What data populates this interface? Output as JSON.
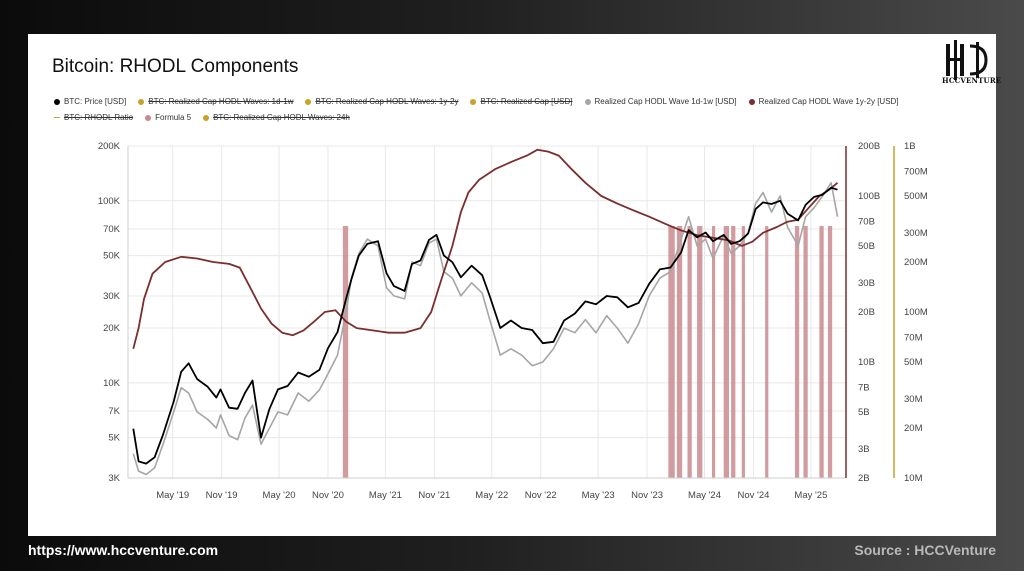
{
  "footer": {
    "url": "https://www.hccventure.com",
    "source": "Source : HCCVenture"
  },
  "logo": {
    "text": "HCCVENTURE",
    "icon": "hcc-monogram-icon"
  },
  "colors": {
    "price": "#000000",
    "wave1d1w": "#a6a6a6",
    "wave1y2y": "#7a2e2e",
    "signal": "#c98a8f",
    "axis_right_2": "#c9a227",
    "grid": "#e8e8e8"
  },
  "chart_data": {
    "type": "line",
    "title": "Bitcoin: RHODL Components",
    "legend": [
      {
        "label": "BTC: Price [USD]",
        "color": "#000000",
        "active": true,
        "marker": "dot"
      },
      {
        "label": "BTC: Realized Cap HODL Waves: 1d-1w",
        "color": "#c9a227",
        "active": false,
        "marker": "dot"
      },
      {
        "label": "BTC: Realized Cap HODL Waves: 1y-2y",
        "color": "#c9a227",
        "active": false,
        "marker": "dot"
      },
      {
        "label": "BTC: Realized Cap [USD]",
        "color": "#c9a227",
        "active": false,
        "marker": "dot"
      },
      {
        "label": "Realized Cap HODL Wave 1d-1w [USD]",
        "color": "#a6a6a6",
        "active": true,
        "marker": "dot"
      },
      {
        "label": "Realized Cap HODL Wave 1y-2y [USD]",
        "color": "#7a2e2e",
        "active": true,
        "marker": "dot"
      },
      {
        "label": "BTC: RHODL Ratio",
        "color": "#c9a227",
        "active": false,
        "marker": "dash"
      },
      {
        "label": "Formula 5",
        "color": "#c98a8f",
        "active": true,
        "marker": "dot"
      },
      {
        "label": "BTC: Realized Cap HODL Waves: 24h",
        "color": "#c9a227",
        "active": false,
        "marker": "dot"
      }
    ],
    "x_ticks": [
      "May '19",
      "Nov '19",
      "May '20",
      "Nov '20",
      "May '21",
      "Nov '21",
      "May '22",
      "Nov '22",
      "May '23",
      "Nov '23",
      "May '24",
      "Nov '24",
      "May '25"
    ],
    "x_range": [
      2018.95,
      2025.7
    ],
    "y_left": {
      "scale": "log",
      "ticks": [
        "3K",
        "5K",
        "7K",
        "10K",
        "20K",
        "30K",
        "50K",
        "70K",
        "100K",
        "200K"
      ],
      "tick_values": [
        3000,
        5000,
        7000,
        10000,
        20000,
        30000,
        50000,
        70000,
        100000,
        200000
      ],
      "range": [
        3000,
        200000
      ]
    },
    "y_right_1": {
      "scale": "log",
      "ticks": [
        "2B",
        "3B",
        "5B",
        "7B",
        "10B",
        "20B",
        "30B",
        "50B",
        "70B",
        "100B",
        "200B"
      ],
      "tick_values": [
        2000000000.0,
        3000000000.0,
        5000000000.0,
        7000000000.0,
        10000000000.0,
        20000000000.0,
        30000000000.0,
        50000000000.0,
        70000000000.0,
        100000000000.0,
        200000000000.0
      ],
      "range": [
        2000000000.0,
        200000000000.0
      ]
    },
    "y_right_2": {
      "scale": "log",
      "ticks": [
        "10M",
        "20M",
        "30M",
        "50M",
        "70M",
        "100M",
        "200M",
        "300M",
        "500M",
        "700M",
        "1B"
      ],
      "tick_values": [
        10000000.0,
        20000000.0,
        30000000.0,
        50000000.0,
        70000000.0,
        100000000.0,
        200000000.0,
        300000000.0,
        500000000.0,
        700000000.0,
        1000000000.0
      ],
      "range": [
        10000000.0,
        1000000000.0
      ]
    },
    "series": [
      {
        "name": "BTC: Price [USD]",
        "axis": "left",
        "points": [
          [
            2019.0,
            5600
          ],
          [
            2019.05,
            3700
          ],
          [
            2019.12,
            3600
          ],
          [
            2019.2,
            3900
          ],
          [
            2019.28,
            5200
          ],
          [
            2019.38,
            7900
          ],
          [
            2019.45,
            11500
          ],
          [
            2019.52,
            12800
          ],
          [
            2019.6,
            10500
          ],
          [
            2019.7,
            9500
          ],
          [
            2019.78,
            8300
          ],
          [
            2019.82,
            9200
          ],
          [
            2019.9,
            7300
          ],
          [
            2019.98,
            7200
          ],
          [
            2020.05,
            8800
          ],
          [
            2020.12,
            10300
          ],
          [
            2020.2,
            5000
          ],
          [
            2020.28,
            7200
          ],
          [
            2020.36,
            9200
          ],
          [
            2020.45,
            9600
          ],
          [
            2020.55,
            11400
          ],
          [
            2020.65,
            10800
          ],
          [
            2020.75,
            11800
          ],
          [
            2020.83,
            15500
          ],
          [
            2020.92,
            19000
          ],
          [
            2021.0,
            29000
          ],
          [
            2021.05,
            37000
          ],
          [
            2021.12,
            50000
          ],
          [
            2021.2,
            58000
          ],
          [
            2021.3,
            60000
          ],
          [
            2021.38,
            40000
          ],
          [
            2021.45,
            34000
          ],
          [
            2021.55,
            32000
          ],
          [
            2021.62,
            45000
          ],
          [
            2021.7,
            47000
          ],
          [
            2021.78,
            61000
          ],
          [
            2021.85,
            65000
          ],
          [
            2021.92,
            50000
          ],
          [
            2022.0,
            46000
          ],
          [
            2022.08,
            38000
          ],
          [
            2022.18,
            44000
          ],
          [
            2022.28,
            39000
          ],
          [
            2022.35,
            30000
          ],
          [
            2022.45,
            20000
          ],
          [
            2022.55,
            22000
          ],
          [
            2022.65,
            20000
          ],
          [
            2022.75,
            19500
          ],
          [
            2022.85,
            16500
          ],
          [
            2022.95,
            16800
          ],
          [
            2023.05,
            22000
          ],
          [
            2023.15,
            24000
          ],
          [
            2023.25,
            28000
          ],
          [
            2023.35,
            27000
          ],
          [
            2023.45,
            30000
          ],
          [
            2023.55,
            29500
          ],
          [
            2023.65,
            26000
          ],
          [
            2023.75,
            27500
          ],
          [
            2023.85,
            35000
          ],
          [
            2023.95,
            42000
          ],
          [
            2024.05,
            43000
          ],
          [
            2024.15,
            52000
          ],
          [
            2024.22,
            69000
          ],
          [
            2024.3,
            63000
          ],
          [
            2024.38,
            67000
          ],
          [
            2024.45,
            60000
          ],
          [
            2024.55,
            65000
          ],
          [
            2024.62,
            58000
          ],
          [
            2024.7,
            60000
          ],
          [
            2024.78,
            66000
          ],
          [
            2024.85,
            90000
          ],
          [
            2024.92,
            98000
          ],
          [
            2025.0,
            96000
          ],
          [
            2025.08,
            100000
          ],
          [
            2025.15,
            85000
          ],
          [
            2025.25,
            78000
          ],
          [
            2025.32,
            95000
          ],
          [
            2025.4,
            105000
          ],
          [
            2025.48,
            108000
          ],
          [
            2025.56,
            118000
          ],
          [
            2025.62,
            115000
          ]
        ]
      },
      {
        "name": "Realized Cap HODL Wave 1d-1w [USD]",
        "axis": "right_1",
        "points": [
          [
            2019.0,
            2800000000.0
          ],
          [
            2019.05,
            2200000000.0
          ],
          [
            2019.12,
            2100000000.0
          ],
          [
            2019.2,
            2300000000.0
          ],
          [
            2019.28,
            3200000000.0
          ],
          [
            2019.38,
            5000000000.0
          ],
          [
            2019.45,
            7000000000.0
          ],
          [
            2019.52,
            6500000000.0
          ],
          [
            2019.6,
            5000000000.0
          ],
          [
            2019.7,
            4500000000.0
          ],
          [
            2019.78,
            4000000000.0
          ],
          [
            2019.82,
            4800000000.0
          ],
          [
            2019.9,
            3600000000.0
          ],
          [
            2019.98,
            3400000000.0
          ],
          [
            2020.05,
            4600000000.0
          ],
          [
            2020.12,
            5500000000.0
          ],
          [
            2020.2,
            3200000000.0
          ],
          [
            2020.28,
            4000000000.0
          ],
          [
            2020.36,
            5000000000.0
          ],
          [
            2020.45,
            4800000000.0
          ],
          [
            2020.55,
            6500000000.0
          ],
          [
            2020.65,
            5800000000.0
          ],
          [
            2020.75,
            6800000000.0
          ],
          [
            2020.83,
            8500000000.0
          ],
          [
            2020.92,
            11000000000.0
          ],
          [
            2021.0,
            20000000000.0
          ],
          [
            2021.05,
            32000000000.0
          ],
          [
            2021.12,
            45000000000.0
          ],
          [
            2021.2,
            55000000000.0
          ],
          [
            2021.3,
            50000000000.0
          ],
          [
            2021.38,
            28000000000.0
          ],
          [
            2021.45,
            25000000000.0
          ],
          [
            2021.55,
            24000000000.0
          ],
          [
            2021.62,
            40000000000.0
          ],
          [
            2021.7,
            38000000000.0
          ],
          [
            2021.78,
            52000000000.0
          ],
          [
            2021.85,
            55000000000.0
          ],
          [
            2021.92,
            35000000000.0
          ],
          [
            2022.0,
            32000000000.0
          ],
          [
            2022.08,
            25000000000.0
          ],
          [
            2022.18,
            30000000000.0
          ],
          [
            2022.28,
            26000000000.0
          ],
          [
            2022.35,
            18000000000.0
          ],
          [
            2022.45,
            11000000000.0
          ],
          [
            2022.55,
            12000000000.0
          ],
          [
            2022.65,
            11000000000.0
          ],
          [
            2022.75,
            9500000000.0
          ],
          [
            2022.85,
            10000000000.0
          ],
          [
            2022.95,
            12000000000.0
          ],
          [
            2023.05,
            16000000000.0
          ],
          [
            2023.15,
            15000000000.0
          ],
          [
            2023.25,
            18000000000.0
          ],
          [
            2023.35,
            15000000000.0
          ],
          [
            2023.45,
            19000000000.0
          ],
          [
            2023.55,
            16000000000.0
          ],
          [
            2023.65,
            13000000000.0
          ],
          [
            2023.75,
            17000000000.0
          ],
          [
            2023.85,
            25000000000.0
          ],
          [
            2023.95,
            32000000000.0
          ],
          [
            2024.05,
            35000000000.0
          ],
          [
            2024.15,
            55000000000.0
          ],
          [
            2024.22,
            75000000000.0
          ],
          [
            2024.3,
            50000000000.0
          ],
          [
            2024.38,
            55000000000.0
          ],
          [
            2024.45,
            42000000000.0
          ],
          [
            2024.55,
            58000000000.0
          ],
          [
            2024.62,
            45000000000.0
          ],
          [
            2024.7,
            50000000000.0
          ],
          [
            2024.78,
            60000000000.0
          ],
          [
            2024.85,
            90000000000.0
          ],
          [
            2024.92,
            105000000000.0
          ],
          [
            2025.0,
            80000000000.0
          ],
          [
            2025.08,
            100000000000.0
          ],
          [
            2025.15,
            65000000000.0
          ],
          [
            2025.25,
            50000000000.0
          ],
          [
            2025.32,
            75000000000.0
          ],
          [
            2025.4,
            85000000000.0
          ],
          [
            2025.48,
            100000000000.0
          ],
          [
            2025.56,
            120000000000.0
          ],
          [
            2025.62,
            75000000000.0
          ]
        ]
      },
      {
        "name": "Realized Cap HODL Wave 1y-2y [USD]",
        "axis": "right_1",
        "points": [
          [
            2019.0,
            12000000000.0
          ],
          [
            2019.05,
            16000000000.0
          ],
          [
            2019.1,
            24000000000.0
          ],
          [
            2019.18,
            34000000000.0
          ],
          [
            2019.3,
            40000000000.0
          ],
          [
            2019.45,
            43000000000.0
          ],
          [
            2019.6,
            42000000000.0
          ],
          [
            2019.75,
            40000000000.0
          ],
          [
            2019.9,
            39000000000.0
          ],
          [
            2020.0,
            37000000000.0
          ],
          [
            2020.1,
            28000000000.0
          ],
          [
            2020.2,
            21000000000.0
          ],
          [
            2020.3,
            17000000000.0
          ],
          [
            2020.4,
            15000000000.0
          ],
          [
            2020.5,
            14500000000.0
          ],
          [
            2020.6,
            15500000000.0
          ],
          [
            2020.7,
            17500000000.0
          ],
          [
            2020.8,
            20000000000.0
          ],
          [
            2020.9,
            20500000000.0
          ],
          [
            2021.0,
            17500000000.0
          ],
          [
            2021.1,
            16000000000.0
          ],
          [
            2021.25,
            15500000000.0
          ],
          [
            2021.4,
            15000000000.0
          ],
          [
            2021.55,
            15000000000.0
          ],
          [
            2021.7,
            16000000000.0
          ],
          [
            2021.8,
            20000000000.0
          ],
          [
            2021.9,
            32000000000.0
          ],
          [
            2022.0,
            50000000000.0
          ],
          [
            2022.08,
            80000000000.0
          ],
          [
            2022.15,
            105000000000.0
          ],
          [
            2022.25,
            125000000000.0
          ],
          [
            2022.4,
            145000000000.0
          ],
          [
            2022.55,
            160000000000.0
          ],
          [
            2022.7,
            175000000000.0
          ],
          [
            2022.8,
            190000000000.0
          ],
          [
            2022.9,
            185000000000.0
          ],
          [
            2023.0,
            175000000000.0
          ],
          [
            2023.12,
            145000000000.0
          ],
          [
            2023.25,
            120000000000.0
          ],
          [
            2023.4,
            100000000000.0
          ],
          [
            2023.55,
            90000000000.0
          ],
          [
            2023.7,
            82000000000.0
          ],
          [
            2023.85,
            75000000000.0
          ],
          [
            2024.0,
            68000000000.0
          ],
          [
            2024.15,
            62000000000.0
          ],
          [
            2024.3,
            58000000000.0
          ],
          [
            2024.45,
            56000000000.0
          ],
          [
            2024.6,
            54000000000.0
          ],
          [
            2024.72,
            50000000000.0
          ],
          [
            2024.82,
            53000000000.0
          ],
          [
            2024.92,
            60000000000.0
          ],
          [
            2025.05,
            65000000000.0
          ],
          [
            2025.15,
            70000000000.0
          ],
          [
            2025.25,
            72000000000.0
          ],
          [
            2025.35,
            85000000000.0
          ],
          [
            2025.45,
            100000000000.0
          ],
          [
            2025.55,
            110000000000.0
          ],
          [
            2025.62,
            120000000000.0
          ]
        ]
      }
    ],
    "signal_bands": {
      "name": "Formula 5",
      "ranges": [
        [
          2020.97,
          2021.02
        ],
        [
          2024.03,
          2024.09
        ],
        [
          2024.11,
          2024.16
        ],
        [
          2024.21,
          2024.25
        ],
        [
          2024.3,
          2024.35
        ],
        [
          2024.44,
          2024.47
        ],
        [
          2024.55,
          2024.6
        ],
        [
          2024.62,
          2024.66
        ],
        [
          2024.72,
          2024.75
        ],
        [
          2024.94,
          2024.97
        ],
        [
          2025.22,
          2025.26
        ],
        [
          2025.3,
          2025.34
        ],
        [
          2025.45,
          2025.49
        ],
        [
          2025.53,
          2025.57
        ]
      ]
    }
  }
}
